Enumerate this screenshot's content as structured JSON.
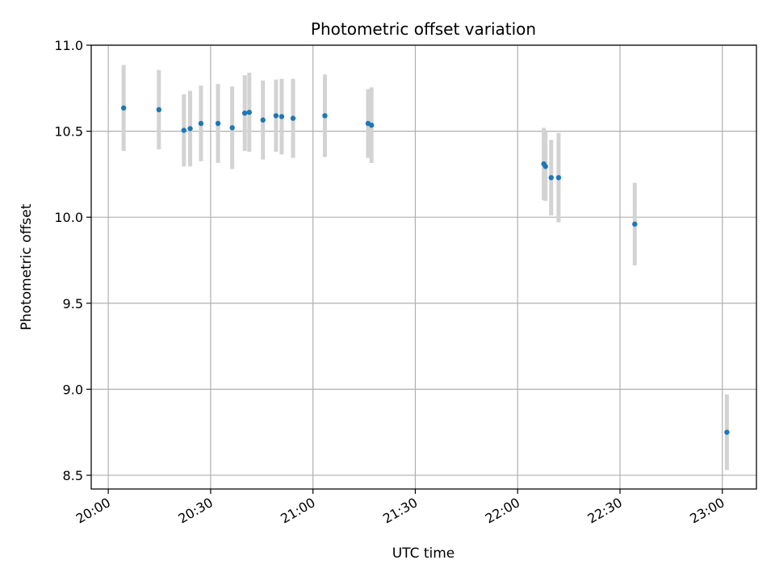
{
  "chart_data": {
    "type": "scatter",
    "title": "Photometric offset variation",
    "xlabel": "UTC time",
    "ylabel": "Photometric offset",
    "x_axis": {
      "kind": "time",
      "min": "19:55",
      "max": "23:10"
    },
    "ylim": [
      8.42,
      11.0
    ],
    "grid": true,
    "x_ticks": [
      "20:00",
      "20:30",
      "21:00",
      "21:30",
      "22:00",
      "22:30",
      "23:00"
    ],
    "y_ticks": [
      "8.5",
      "9.0",
      "9.5",
      "10.0",
      "10.5",
      "11.0"
    ],
    "y_tick_values": [
      8.5,
      9.0,
      9.5,
      10.0,
      10.5,
      11.0
    ],
    "colors": {
      "marker": "#1f77b4",
      "errorbar": "#d3d3d3",
      "grid": "#b0b0b0"
    },
    "series": [
      {
        "points": [
          {
            "x": "20:04:30",
            "y": 10.635,
            "err": 0.25
          },
          {
            "x": "20:14:50",
            "y": 10.625,
            "err": 0.23
          },
          {
            "x": "20:22:10",
            "y": 10.505,
            "err": 0.21
          },
          {
            "x": "20:24:00",
            "y": 10.515,
            "err": 0.22
          },
          {
            "x": "20:27:10",
            "y": 10.545,
            "err": 0.22
          },
          {
            "x": "20:32:10",
            "y": 10.545,
            "err": 0.23
          },
          {
            "x": "20:36:20",
            "y": 10.52,
            "err": 0.24
          },
          {
            "x": "20:40:00",
            "y": 10.605,
            "err": 0.22
          },
          {
            "x": "20:41:20",
            "y": 10.61,
            "err": 0.23
          },
          {
            "x": "20:45:20",
            "y": 10.565,
            "err": 0.23
          },
          {
            "x": "20:49:10",
            "y": 10.59,
            "err": 0.21
          },
          {
            "x": "20:50:50",
            "y": 10.585,
            "err": 0.22
          },
          {
            "x": "20:54:10",
            "y": 10.575,
            "err": 0.23
          },
          {
            "x": "21:03:30",
            "y": 10.59,
            "err": 0.24
          },
          {
            "x": "21:16:10",
            "y": 10.545,
            "err": 0.2
          },
          {
            "x": "21:17:10",
            "y": 10.535,
            "err": 0.22
          },
          {
            "x": "22:07:40",
            "y": 10.31,
            "err": 0.21
          },
          {
            "x": "22:08:10",
            "y": 10.295,
            "err": 0.2
          },
          {
            "x": "22:09:50",
            "y": 10.23,
            "err": 0.22
          },
          {
            "x": "22:12:00",
            "y": 10.23,
            "err": 0.26
          },
          {
            "x": "22:34:20",
            "y": 9.96,
            "err": 0.24
          },
          {
            "x": "23:01:20",
            "y": 8.75,
            "err": 0.22
          }
        ]
      }
    ]
  }
}
